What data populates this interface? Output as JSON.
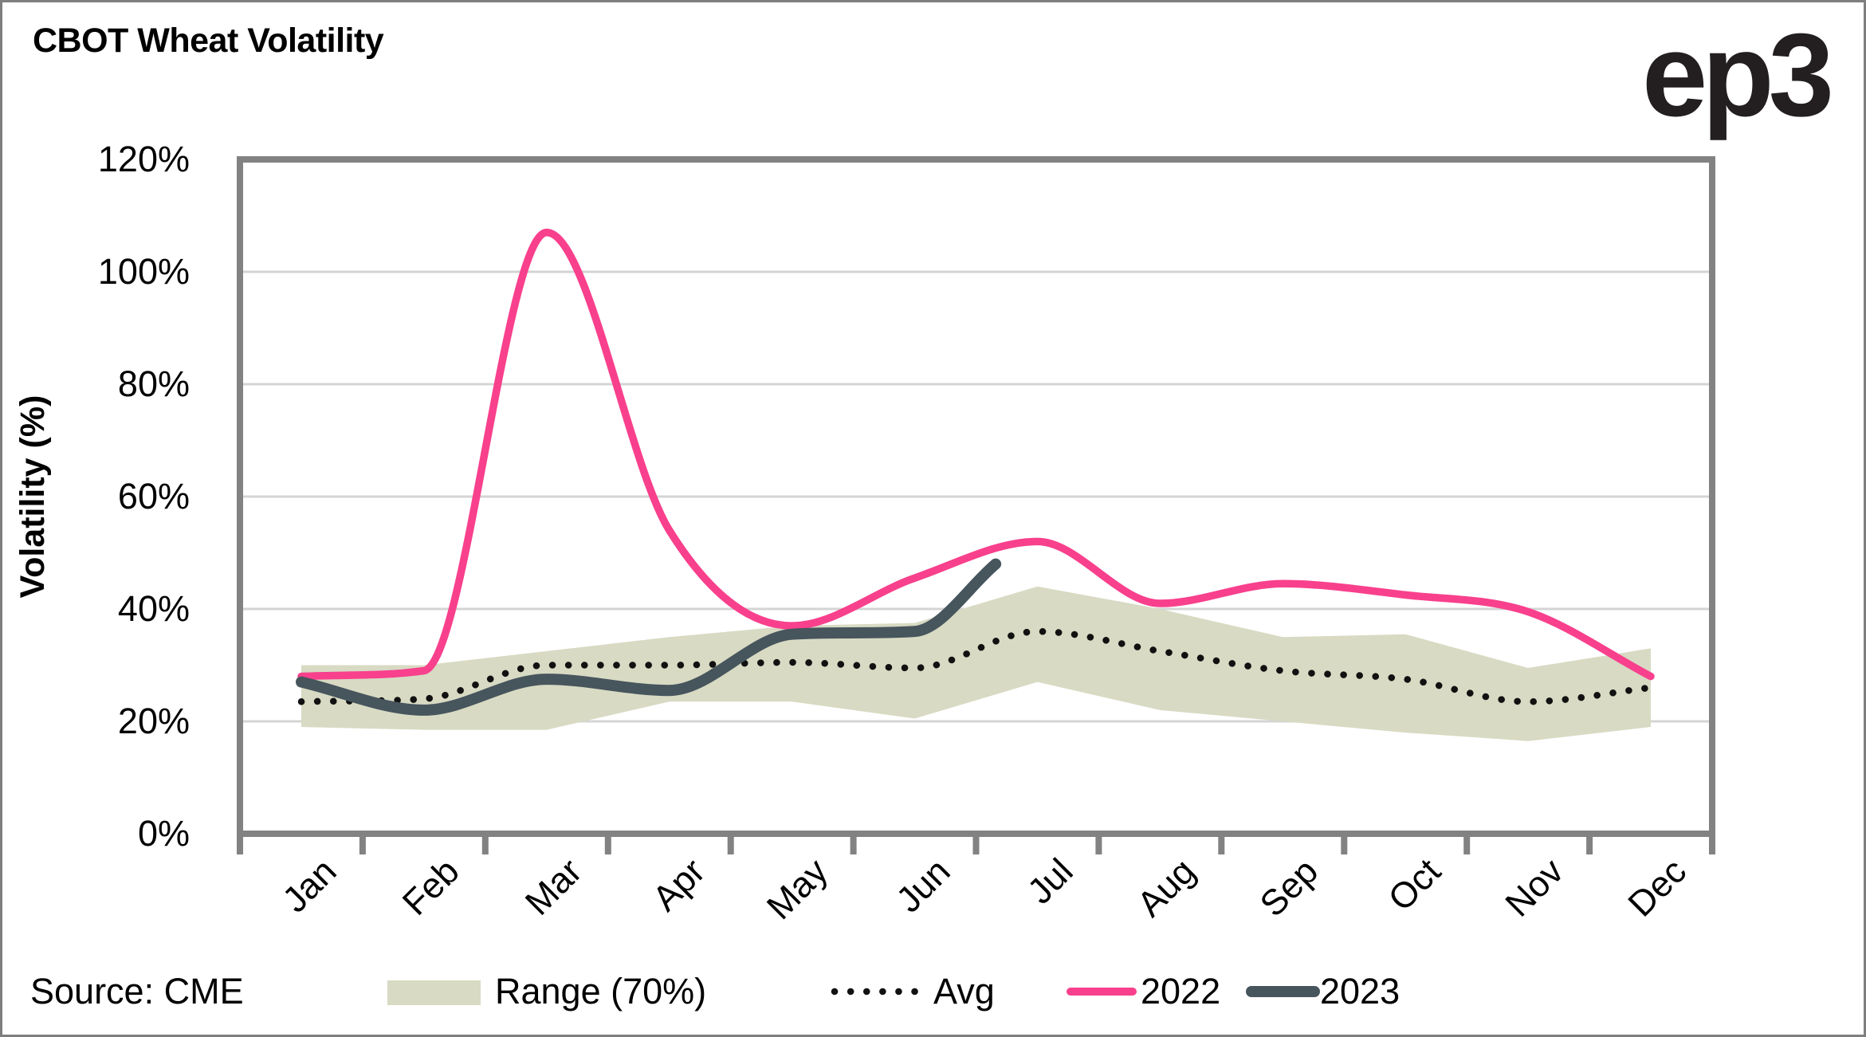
{
  "header": {
    "title": "CBOT Wheat Volatility",
    "logo_text": "ep3"
  },
  "source_label": "Source: CME",
  "colors": {
    "pink_2022": "#F8408D",
    "slate_2023": "#47555D",
    "band_olive": "#D8DAC3",
    "avg_dotted": "#111111",
    "gridline": "#D4D4D4",
    "axis_gray": "#828282",
    "logo": "#231f20"
  },
  "legend": {
    "items": [
      {
        "label": "Range (70%)",
        "marker": "band-swatch"
      },
      {
        "label": "Avg",
        "marker": "dotted-line"
      },
      {
        "label": "2022",
        "marker": "pink-line"
      },
      {
        "label": "2023",
        "marker": "slate-line"
      }
    ]
  },
  "chart_data": {
    "type": "line",
    "title": "CBOT Wheat Volatility",
    "xlabel": "",
    "ylabel": "Volatility (%)",
    "ylim": [
      0,
      120
    ],
    "yticks": [
      0,
      20,
      40,
      60,
      80,
      100,
      120
    ],
    "ytick_labels": [
      "0%",
      "20%",
      "40%",
      "60%",
      "80%",
      "100%",
      "120%"
    ],
    "grid": true,
    "legend_position": "bottom",
    "categories": [
      "Jan",
      "Feb",
      "Mar",
      "Apr",
      "May",
      "Jun",
      "Jul",
      "Aug",
      "Sep",
      "Oct",
      "Nov",
      "Dec"
    ],
    "series": [
      {
        "name": "Range (70%)",
        "type": "band",
        "color": "#D8DAC3",
        "upper": [
          30,
          30,
          32.5,
          35,
          37,
          37.5,
          44,
          40,
          35,
          35.5,
          29.5,
          33
        ],
        "lower": [
          19,
          18.5,
          18.5,
          23.5,
          23.5,
          20.5,
          27,
          22,
          20,
          18,
          16.5,
          19
        ]
      },
      {
        "name": "Avg",
        "type": "line",
        "style": "dotted",
        "color": "#111111",
        "values": [
          23.5,
          24,
          30,
          30,
          30.5,
          29.5,
          36,
          32.5,
          29,
          27.5,
          23.5,
          26
        ]
      },
      {
        "name": "2022",
        "type": "line",
        "style": "solid",
        "color": "#F8408D",
        "values": [
          28,
          29,
          107,
          54,
          37,
          45.5,
          52,
          41,
          44.5,
          42.5,
          39.5,
          28
        ]
      },
      {
        "name": "2023",
        "type": "line",
        "style": "solid",
        "color": "#47555D",
        "x_months": [
          1,
          2,
          3,
          4,
          5,
          6,
          6.66
        ],
        "values": [
          27,
          22,
          27.5,
          25.5,
          35.5,
          36,
          48
        ],
        "note": "partial year, ends mid-July"
      }
    ]
  }
}
